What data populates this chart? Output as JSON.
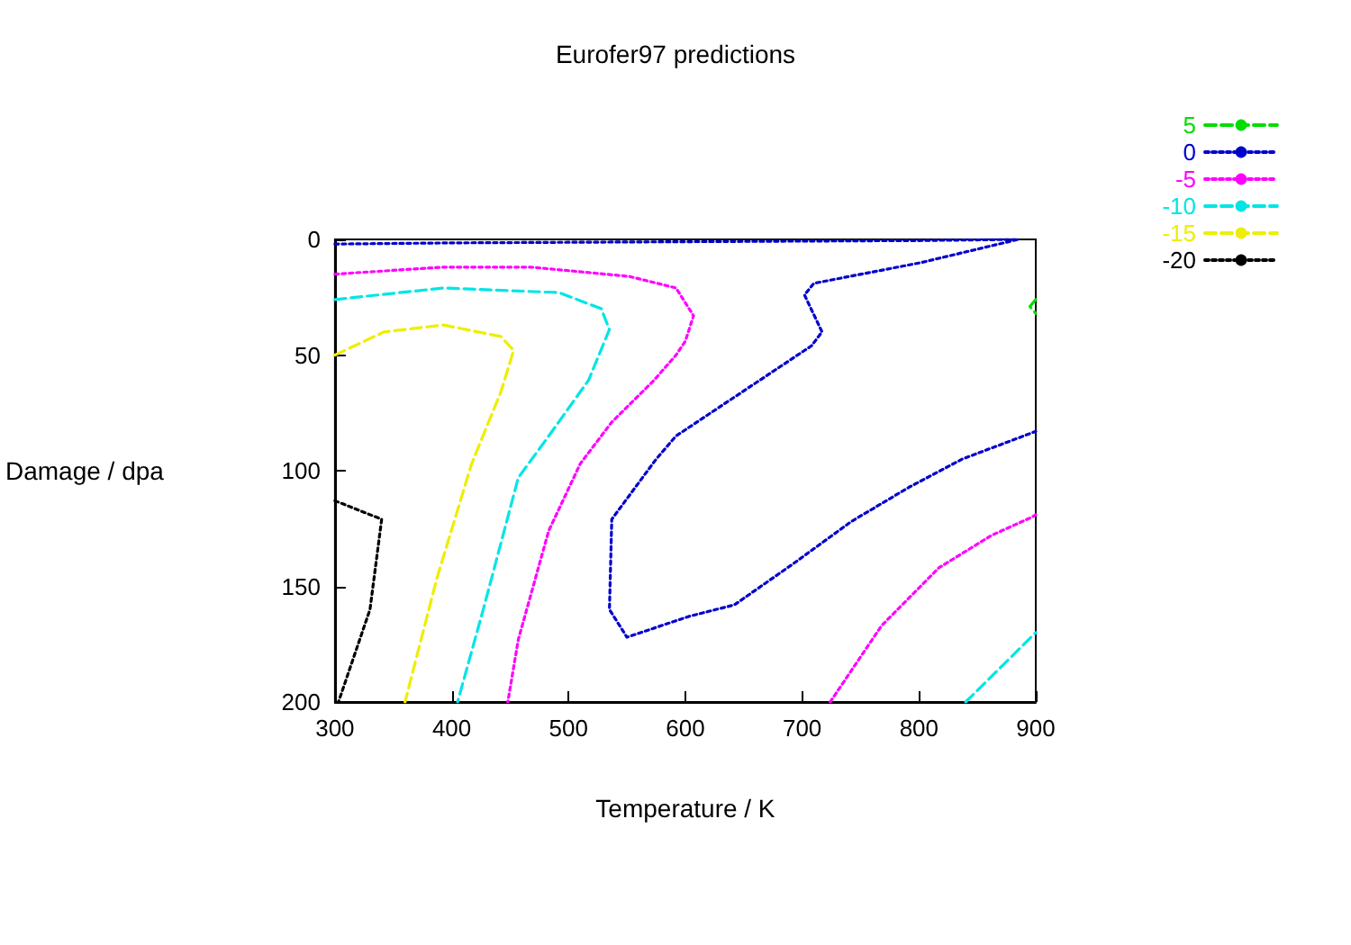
{
  "chart_data": {
    "type": "line",
    "title": "Eurofer97 predictions",
    "xlabel": "Temperature / K",
    "ylabel": "Damage / dpa",
    "xlim": [
      300,
      900
    ],
    "xticks": [
      300,
      400,
      500,
      600,
      700,
      800,
      900
    ],
    "ylim": [
      200,
      0
    ],
    "yticks": [
      0,
      50,
      100,
      150,
      200
    ],
    "grid": false,
    "legend": "top right",
    "marker": "none",
    "series": [
      {
        "name": "5",
        "color": "#00dd00",
        "line_style": "dashed",
        "x": [
          900,
          895,
          900
        ],
        "values": [
          26,
          29,
          32
        ]
      },
      {
        "name": "0",
        "color": "#0000cc",
        "line_style": "dotted",
        "x": [
          300,
          400,
          600,
          800,
          885,
          802,
          710,
          702,
          717,
          708,
          592,
          575,
          537,
          535,
          550,
          603,
          642,
          693,
          742,
          792,
          837,
          900
        ],
        "values": [
          2,
          1.5,
          1,
          0.5,
          0,
          10,
          19,
          24,
          40,
          46,
          85,
          95,
          121,
          160,
          172,
          163,
          158,
          140,
          122,
          107,
          95,
          83
        ]
      },
      {
        "name": "-5",
        "color": "#ff00ff",
        "line_style": "dotted",
        "x": [
          300,
          393,
          468,
          552,
          592,
          607,
          600,
          592,
          573,
          537,
          510,
          483,
          457,
          448
        ],
        "values": [
          15,
          12,
          12,
          16,
          21,
          33,
          44,
          50,
          61,
          79,
          97,
          126,
          173,
          200
        ]
      },
      {
        "color": "#ff00ff",
        "line_style": "dotted",
        "x": [
          724,
          768,
          817,
          862,
          897,
          900
        ],
        "values": [
          200,
          167,
          142,
          128,
          120,
          119
        ]
      },
      {
        "name": "-10",
        "color": "#00e5e5",
        "line_style": "dashed",
        "x": [
          300,
          393,
          492,
          528,
          535,
          517,
          483,
          457,
          427,
          405
        ],
        "values": [
          26,
          21,
          23,
          30,
          39,
          61,
          85,
          103,
          160,
          200
        ]
      },
      {
        "color": "#00e5e5",
        "line_style": "dashed",
        "x": [
          840,
          900
        ],
        "values": [
          200,
          170
        ]
      },
      {
        "name": "-15",
        "color": "#eeee00",
        "line_style": "dashed",
        "x": [
          300,
          342,
          393,
          442,
          453,
          442,
          417,
          387,
          360
        ],
        "values": [
          50,
          40,
          37,
          42,
          48,
          66,
          97,
          147,
          200
        ]
      },
      {
        "name": "-20",
        "color": "#000000",
        "line_style": "dotted",
        "x": [
          300,
          340,
          330,
          303
        ],
        "values": [
          113,
          121,
          160,
          200
        ]
      }
    ]
  }
}
